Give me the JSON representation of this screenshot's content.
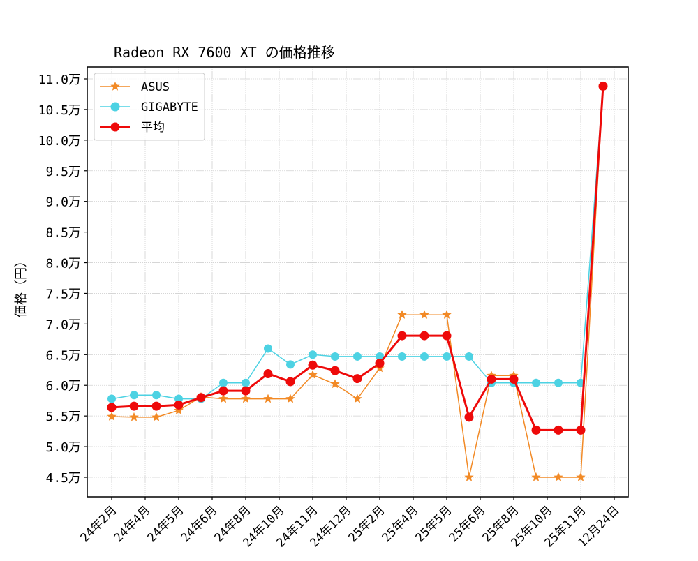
{
  "chart_data": {
    "type": "line",
    "title": "Radeon RX 7600 XT の価格推移",
    "xlabel": "",
    "ylabel": "価格（円）",
    "ylim": [
      4.2,
      11.18
    ],
    "grid": true,
    "legend_position": "upper left",
    "y_unit_suffix": "万",
    "yticks": [
      4.5,
      5.0,
      5.5,
      6.0,
      6.5,
      7.0,
      7.5,
      8.0,
      8.5,
      9.0,
      9.5,
      10.0,
      10.5,
      11.0
    ],
    "ytick_labels": [
      "4.5万",
      "5.0万",
      "5.5万",
      "6.0万",
      "6.5万",
      "7.0万",
      "7.5万",
      "8.0万",
      "8.5万",
      "9.0万",
      "9.5万",
      "10.0万",
      "10.5万",
      "11.0万"
    ],
    "xtick_labels": [
      "24年2月",
      "24年4月",
      "24年5月",
      "24年6月",
      "24年8月",
      "24年10月",
      "24年11月",
      "24年12月",
      "25年2月",
      "25年4月",
      "25年5月",
      "25年6月",
      "25年8月",
      "25年10月",
      "25年11月",
      "12月24日"
    ],
    "xtick_positions": [
      0,
      1.5,
      3,
      4.5,
      6,
      7.5,
      9,
      10.5,
      12,
      13.5,
      15,
      16.5,
      18,
      19.5,
      21,
      22.5
    ],
    "x": [
      0,
      1,
      2,
      3,
      4,
      5,
      6,
      7,
      8,
      9,
      10,
      11,
      12,
      13,
      14,
      15,
      16,
      17,
      18,
      19,
      20,
      21,
      22
    ],
    "series": [
      {
        "name": "ASUS",
        "color": "#f28a26",
        "marker": "star",
        "linewidth": 1.5,
        "values": [
          5.49,
          5.48,
          5.48,
          5.59,
          5.81,
          5.78,
          5.78,
          5.78,
          5.78,
          6.17,
          6.02,
          5.78,
          6.28,
          7.15,
          7.15,
          7.15,
          4.5,
          6.16,
          6.16,
          4.5,
          4.5,
          4.5,
          10.88
        ]
      },
      {
        "name": "GIGABYTE",
        "color": "#4dd2e3",
        "marker": "circle",
        "linewidth": 1.5,
        "values": [
          5.78,
          5.84,
          5.84,
          5.78,
          5.78,
          6.04,
          6.04,
          6.6,
          6.34,
          6.5,
          6.47,
          6.47,
          6.47,
          6.47,
          6.47,
          6.47,
          6.47,
          6.04,
          6.04,
          6.04,
          6.04,
          6.04,
          10.88
        ]
      },
      {
        "name": "平均",
        "color": "#ee0a0a",
        "marker": "circle",
        "linewidth": 3,
        "values": [
          5.64,
          5.66,
          5.66,
          5.68,
          5.8,
          5.91,
          5.91,
          6.19,
          6.06,
          6.33,
          6.24,
          6.11,
          6.36,
          6.81,
          6.81,
          6.81,
          5.48,
          6.1,
          6.1,
          5.27,
          5.27,
          5.27,
          10.88
        ]
      }
    ]
  }
}
